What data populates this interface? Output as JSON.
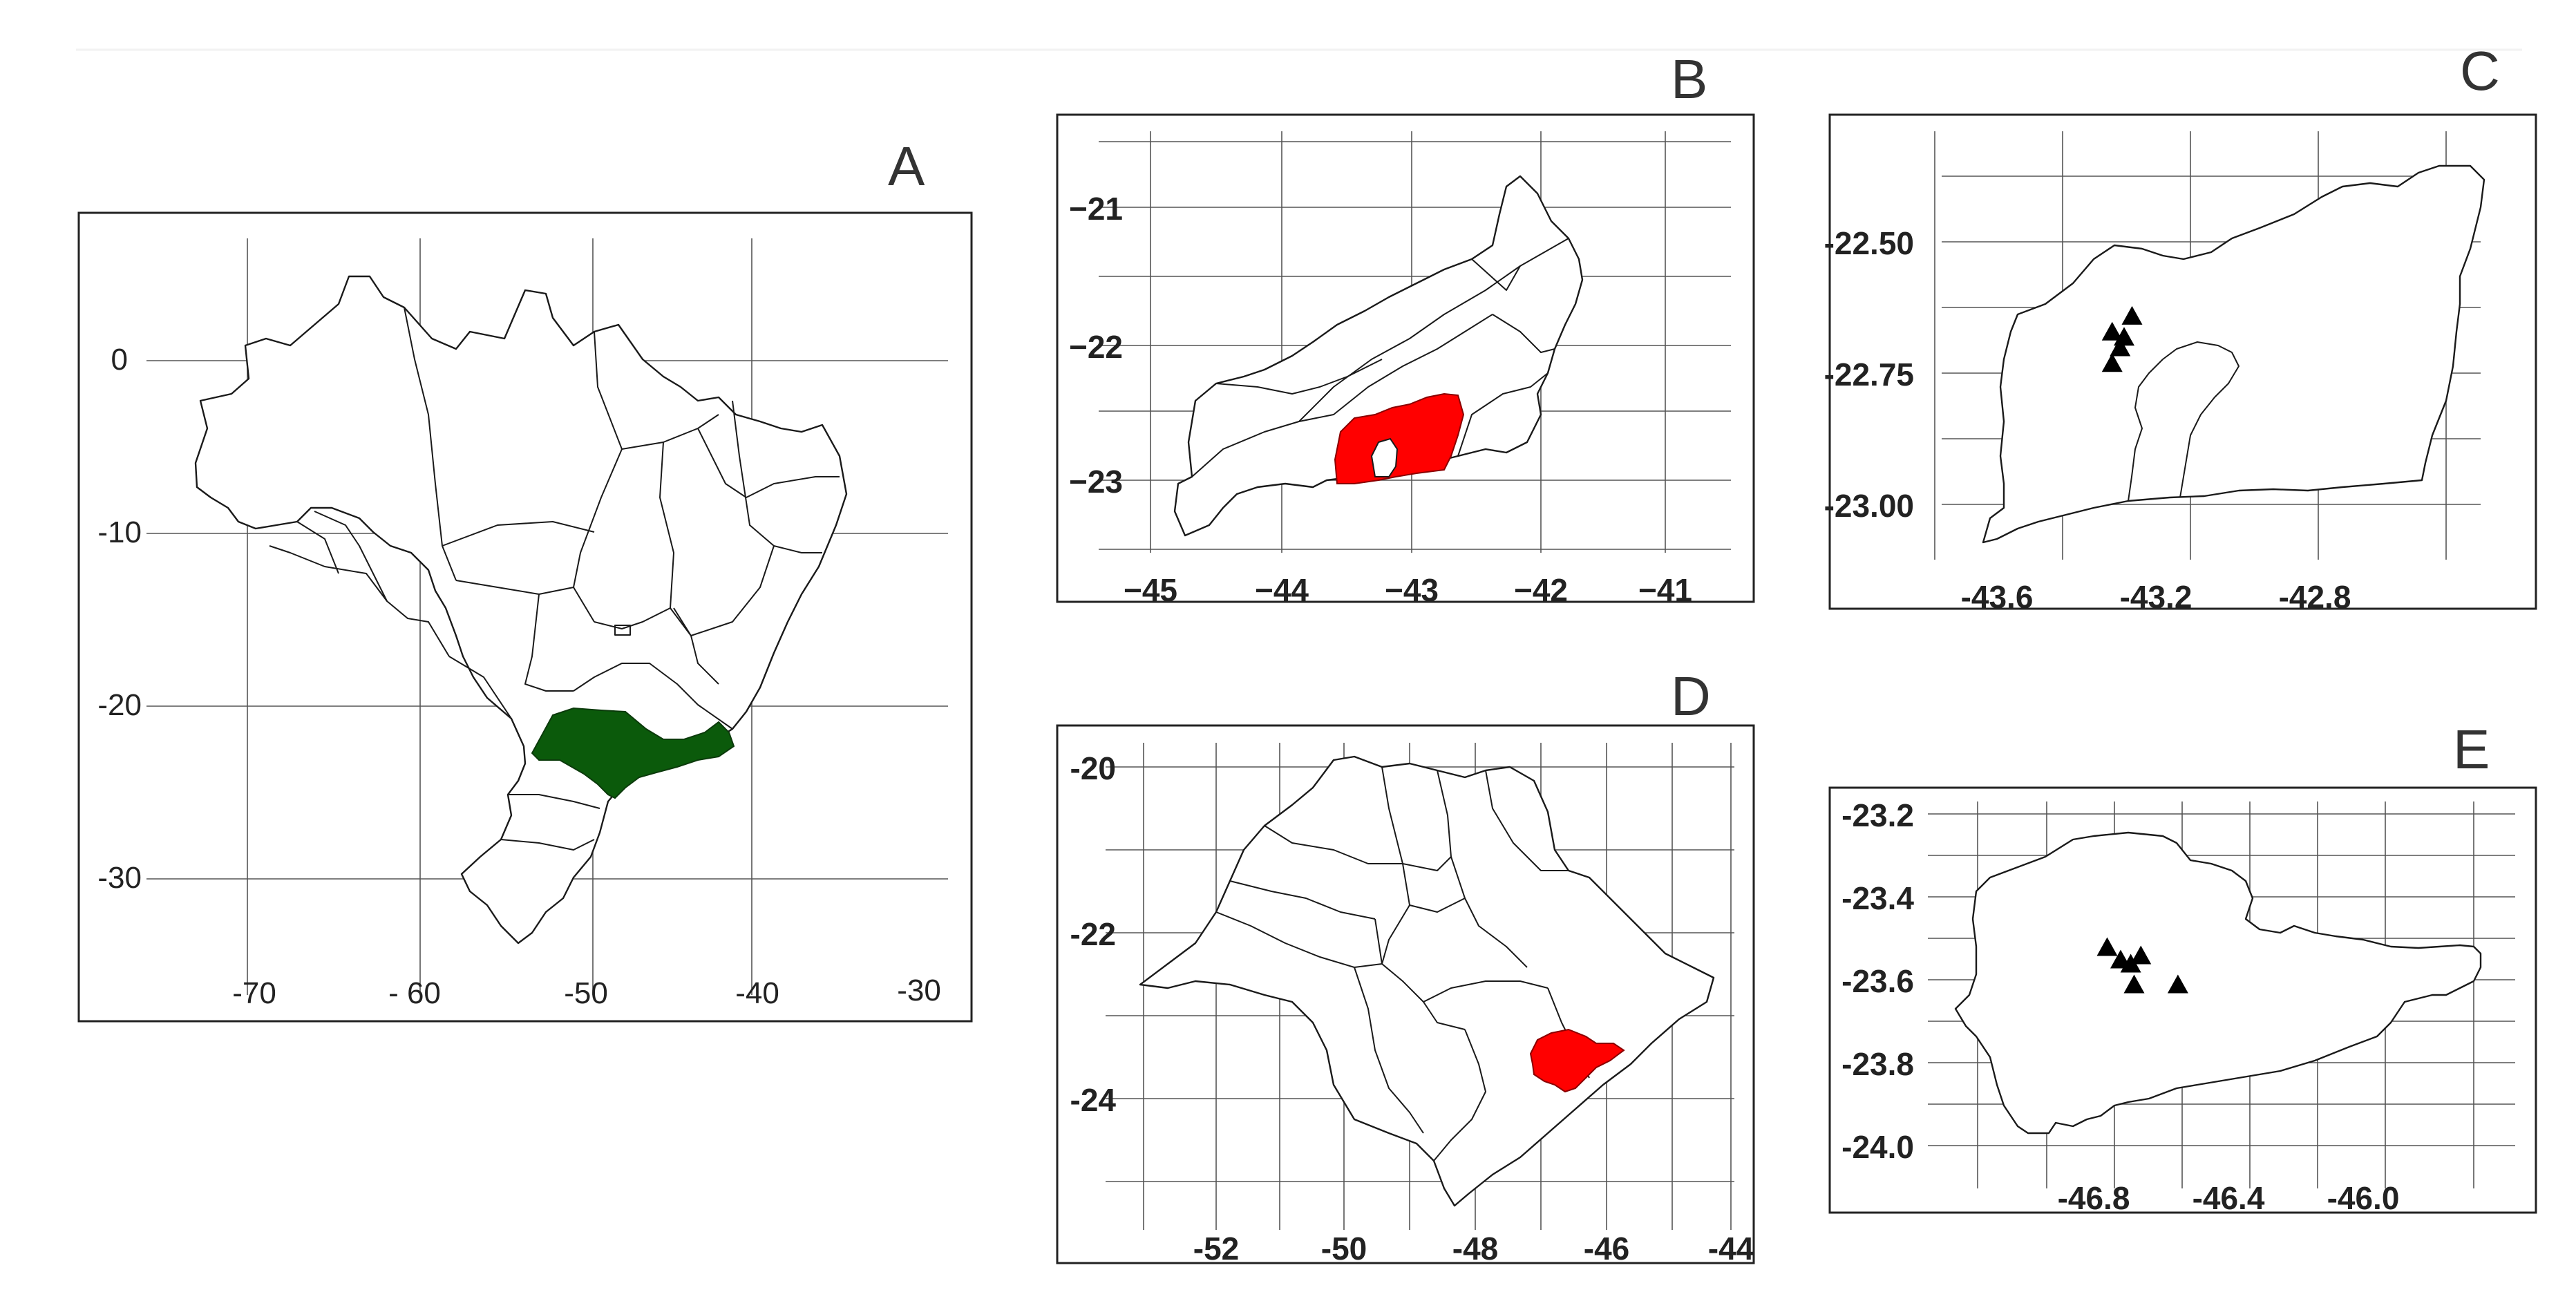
{
  "colors": {
    "study_state": "#0b5a0b",
    "study_city": "#ff0000",
    "sampling_site": "#000000",
    "border": "#1a1a1a",
    "grid": "#555555"
  },
  "panels": {
    "A": {
      "letter": "A",
      "x_ticks": [
        "-70",
        "- 60",
        "-50",
        "-40",
        "-30"
      ],
      "y_ticks": [
        "0",
        "-10",
        "-20",
        "-30"
      ]
    },
    "B": {
      "letter": "B",
      "x_ticks": [
        "−45",
        "−44",
        "−43",
        "−42",
        "−41"
      ],
      "y_ticks": [
        "−21",
        "−22",
        "−23"
      ]
    },
    "C": {
      "letter": "C",
      "x_ticks": [
        "-43.6",
        "-43.2",
        "-42.8"
      ],
      "y_ticks": [
        "-22.50",
        "-22.75",
        "-23.00"
      ]
    },
    "D": {
      "letter": "D",
      "x_ticks": [
        "-52",
        "-50",
        "-48",
        "-46",
        "-44"
      ],
      "y_ticks": [
        "-20",
        "-22",
        "-24"
      ]
    },
    "E": {
      "letter": "E",
      "x_ticks": [
        "-46.8",
        "-46.4",
        "-46.0"
      ],
      "y_ticks": [
        "-23.2",
        "-23.4",
        "-23.6",
        "-23.8",
        "-24.0"
      ]
    }
  },
  "sites": {
    "C": [
      [
        -43.28,
        -22.68
      ],
      [
        -43.26,
        -22.64
      ],
      [
        -43.31,
        -22.67
      ],
      [
        -43.29,
        -22.7
      ],
      [
        -43.31,
        -22.73
      ]
    ],
    "E": [
      [
        -46.76,
        -23.52
      ],
      [
        -46.72,
        -23.55
      ],
      [
        -46.69,
        -23.56
      ],
      [
        -46.66,
        -23.54
      ],
      [
        -46.68,
        -23.61
      ],
      [
        -46.55,
        -23.61
      ]
    ]
  }
}
